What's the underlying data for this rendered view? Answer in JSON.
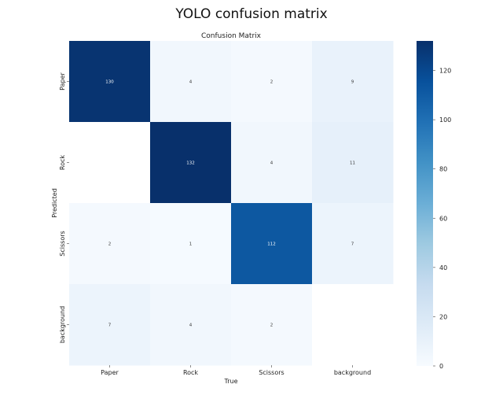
{
  "figure_title": "YOLO confusion matrix",
  "chart_data": {
    "type": "heatmap",
    "title": "Confusion Matrix",
    "xlabel": "True",
    "ylabel": "Predicted",
    "x_categories": [
      "Paper",
      "Rock",
      "Scissors",
      "background"
    ],
    "y_categories": [
      "Paper",
      "Rock",
      "Scissors",
      "background"
    ],
    "values": [
      [
        130,
        4,
        2,
        9
      ],
      [
        0,
        132,
        4,
        11
      ],
      [
        2,
        1,
        112,
        7
      ],
      [
        7,
        4,
        2,
        null
      ]
    ],
    "cell_labels": [
      [
        "130",
        "4",
        "2",
        "9"
      ],
      [
        "",
        "132",
        "4",
        "11"
      ],
      [
        "2",
        "1",
        "112",
        "7"
      ],
      [
        "7",
        "4",
        "2",
        ""
      ]
    ],
    "colormap": "Blues",
    "colorbar": {
      "range": [
        0,
        132
      ],
      "ticks": [
        0,
        20,
        40,
        60,
        80,
        100,
        120
      ],
      "tick_labels": [
        "0",
        "20",
        "40",
        "60",
        "80",
        "100",
        "120"
      ]
    }
  }
}
